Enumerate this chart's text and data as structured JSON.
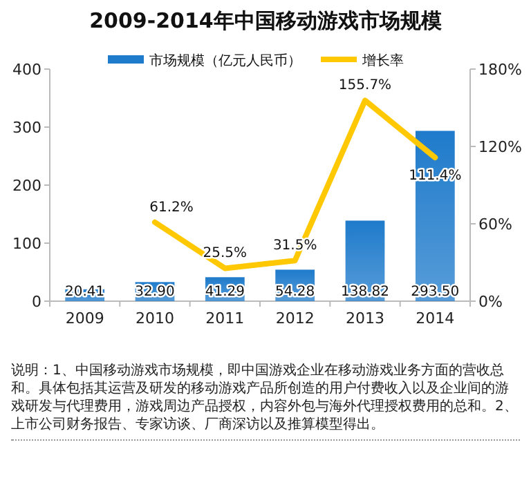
{
  "chart_data": {
    "type": "bar",
    "title": "2009-2014年中国移动游戏市场规模",
    "categories": [
      "2009",
      "2010",
      "2011",
      "2012",
      "2013",
      "2014"
    ],
    "series": [
      {
        "name": "市场规模（亿元人民币）",
        "color": "#1f7bcb",
        "values": [
          20.41,
          32.9,
          41.29,
          54.28,
          138.82,
          293.5
        ],
        "value_labels": [
          "20.41",
          "32.90",
          "41.29",
          "54.28",
          "138.82",
          "293.50"
        ]
      },
      {
        "name": "增长率",
        "type": "line",
        "axis": "y2",
        "color": "#ffc800",
        "values": [
          null,
          61.2,
          25.5,
          31.5,
          155.7,
          111.4
        ],
        "value_labels": [
          null,
          "61.2%",
          "25.5%",
          "31.5%",
          "155.7%",
          "111.4%"
        ]
      }
    ],
    "ylim": [
      0,
      400
    ],
    "yticks": [
      0,
      100,
      200,
      300,
      400
    ],
    "y2lim": [
      0,
      180
    ],
    "y2ticks": [
      {
        "value": 0,
        "label": "0%"
      },
      {
        "value": 60,
        "label": "60%"
      },
      {
        "value": 120,
        "label": "120%"
      },
      {
        "value": 180,
        "label": "180%"
      }
    ],
    "legend": "top",
    "grid": false,
    "marker": "none",
    "line_style": "solid",
    "annotations": [
      "说明：1、中国移动游戏市场规模，即中国游戏企业在移动游戏业务方面的营收总和。具体包括其运营及研发的移动游戏产品所创造的用户付费收入以及企业间的游戏研发与代理费用，游戏周边产品授权，内容外包与海外代理授权费用的总和。2、上市公司财务报告、专家访谈、厂商深访以及推算模型得出。"
    ]
  }
}
